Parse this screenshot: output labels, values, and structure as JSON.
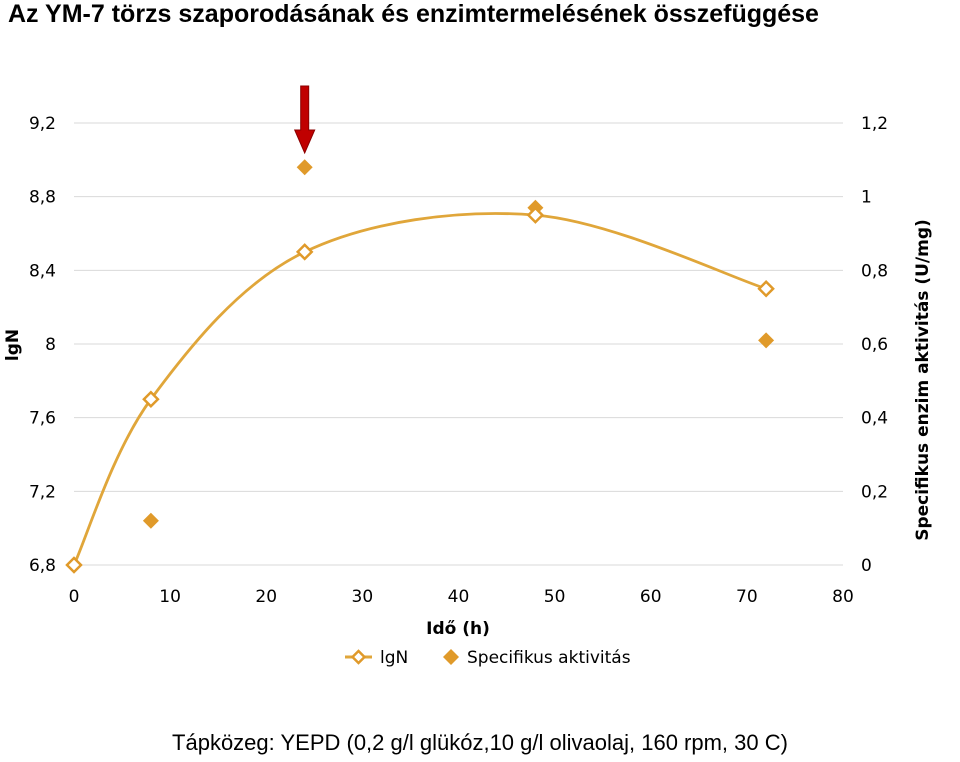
{
  "title": "Az YM-7 törzs szaporodásának és enzimtermelésének összefüggése",
  "footer": "Tápközeg: YEPD (0,2 g/l glükóz,10 g/l olivaolaj, 160 rpm, 30  C)",
  "colors": {
    "series": "#E09A2A",
    "line": "#E0A63A",
    "arrow": "#C00000",
    "arrow_outline": "#8B0000"
  },
  "chart_data": {
    "type": "scatter",
    "xlabel": "Idő (h)",
    "ylabel_left": "lgN",
    "ylabel_right": "Specifikus enzim aktivitás (U/mg)",
    "x_ticks": [
      "0",
      "10",
      "20",
      "30",
      "40",
      "50",
      "60",
      "70",
      "80"
    ],
    "y_left_ticks": [
      "6,8",
      "7,2",
      "7,6",
      "8",
      "8,4",
      "8,8",
      "9,2"
    ],
    "y_right_ticks": [
      "0",
      "0,2",
      "0,4",
      "0,6",
      "0,8",
      "1",
      "1,2"
    ],
    "xlim": [
      0,
      80
    ],
    "ylim_left": [
      6.8,
      9.2
    ],
    "ylim_right": [
      0,
      1.2
    ],
    "grid": "horizontal",
    "legend_position": "bottom",
    "series": [
      {
        "name": "lgN",
        "axis": "left",
        "style": "smooth-line-hollow-diamond",
        "x": [
          0,
          8,
          24,
          48,
          72
        ],
        "y": [
          6.8,
          7.7,
          8.5,
          8.7,
          8.3
        ]
      },
      {
        "name": "Specifikus aktivitás",
        "axis": "right",
        "style": "filled-diamond",
        "x": [
          0,
          8,
          24,
          48,
          72
        ],
        "y": [
          0,
          0.12,
          1.08,
          0.97,
          0.61
        ]
      }
    ],
    "annotations": [
      {
        "type": "arrow-down",
        "x": 24,
        "target_series": "Specifikus aktivitás"
      }
    ]
  }
}
